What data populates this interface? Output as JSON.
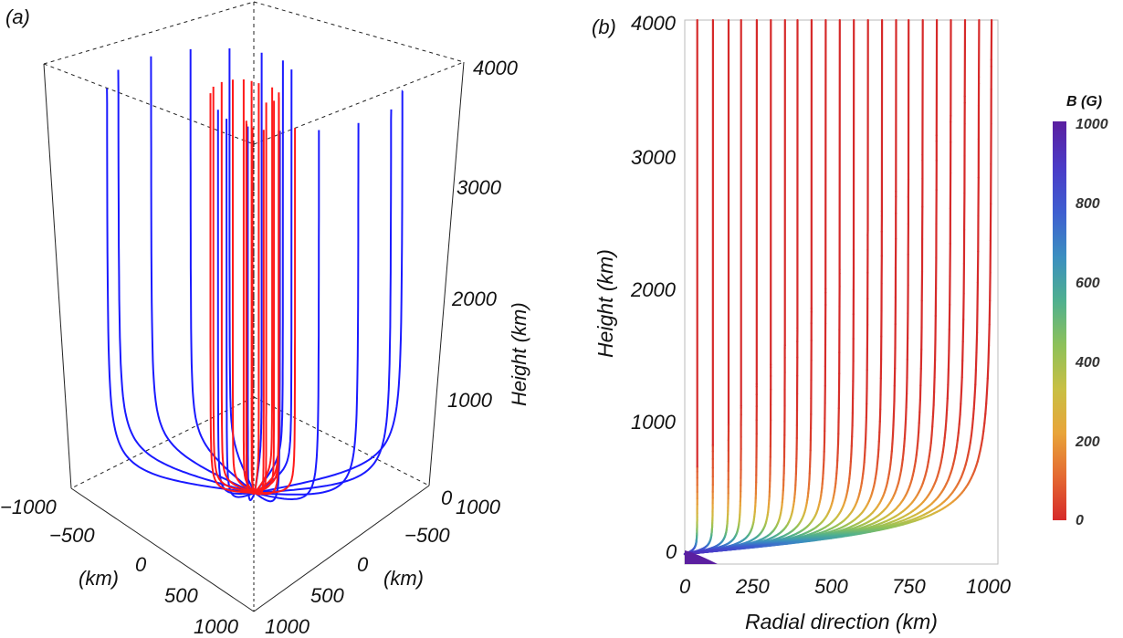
{
  "chart_data": [
    {
      "panel": "(a)",
      "type": "line",
      "projection": "3d-perspective-box",
      "description_series": [
        {
          "name": "outer field lines",
          "color": "#1a1aff"
        },
        {
          "name": "inner field lines",
          "color": "#ff1a1a"
        }
      ],
      "x_ticks": [
        "−1000",
        "−500",
        "0",
        "500",
        "1000"
      ],
      "x_label": "(km)",
      "y_ticks": [
        "1000",
        "−500",
        "0",
        "500",
        "1000"
      ],
      "y_label": "(km)",
      "z_ticks": [
        "0",
        "1000",
        "2000",
        "3000",
        "4000"
      ],
      "z_label": "Height (km)",
      "z_range": [
        0,
        4000
      ],
      "outer_radii_km": [
        350,
        450,
        550,
        650,
        750,
        850,
        950,
        1000
      ],
      "inner_radii_km": [
        80,
        130,
        180,
        230,
        280,
        330
      ]
    },
    {
      "panel": "(b)",
      "type": "line",
      "xlabel": "Radial direction (km)",
      "ylabel": "Height (km)",
      "xlim": [
        0,
        1000
      ],
      "ylim": [
        -100,
        4000
      ],
      "x_ticks": [
        "0",
        "250",
        "500",
        "750",
        "1000"
      ],
      "y_ticks": [
        "0",
        "1000",
        "2000",
        "3000",
        "4000"
      ],
      "line_footpoint_radii_km": [
        40,
        90,
        140,
        180,
        230,
        275,
        320,
        360,
        405,
        450,
        495,
        540,
        585,
        630,
        675,
        715,
        760,
        805,
        850,
        895,
        940,
        980
      ],
      "colorbar": {
        "title": "B (G)",
        "range": [
          0,
          1000
        ],
        "ticks": [
          "0",
          "200",
          "400",
          "600",
          "800",
          "1000"
        ],
        "colors": [
          "#d62a2a",
          "#e46a32",
          "#e8a53a",
          "#c8c044",
          "#8dc15a",
          "#4fb08f",
          "#3b8fc0",
          "#3e5fd0",
          "#4a3cc8",
          "#5b1fa0"
        ]
      }
    }
  ]
}
